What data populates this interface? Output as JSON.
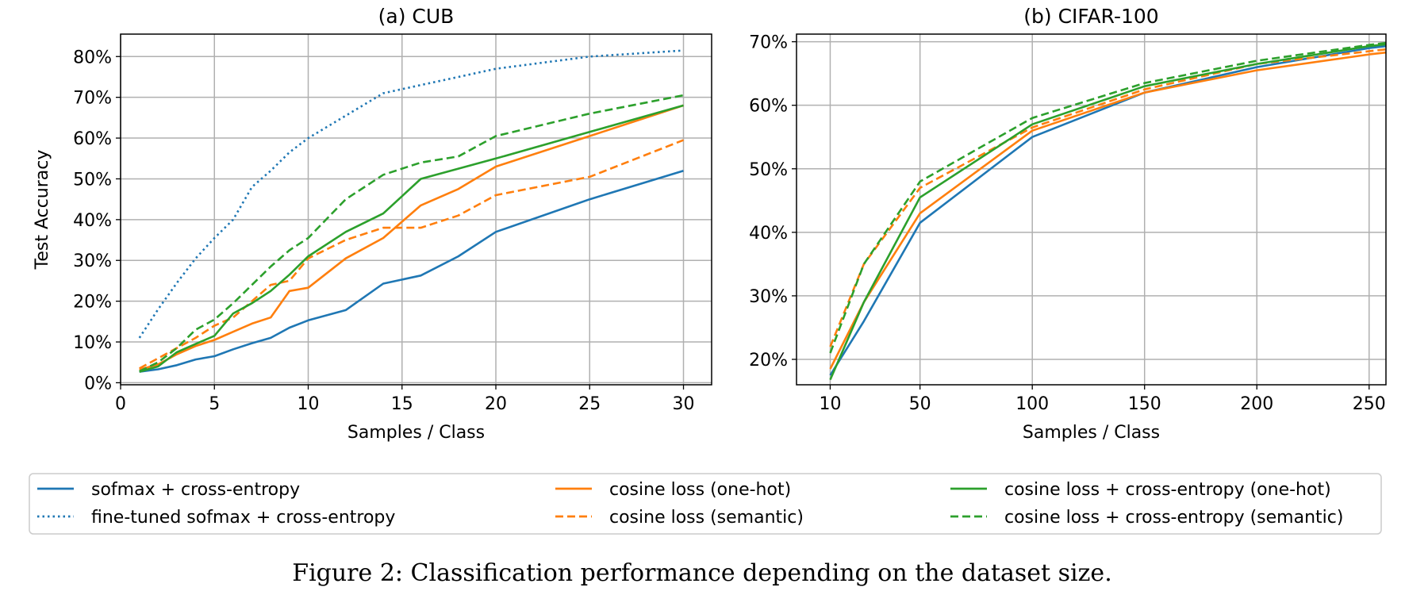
{
  "chart_data": [
    {
      "type": "line",
      "title": "(a) CUB",
      "xlabel": "Samples / Class",
      "ylabel": "Test Accuracy",
      "xlim": [
        0,
        31.5
      ],
      "ylim": [
        -0.5,
        85.5
      ],
      "xticks": [
        0,
        5,
        10,
        15,
        20,
        25,
        30
      ],
      "xtick_labels": [
        "0",
        "5",
        "10",
        "15",
        "20",
        "25",
        "30"
      ],
      "yticks": [
        0,
        10,
        20,
        30,
        40,
        50,
        60,
        70,
        80
      ],
      "ytick_labels": [
        "0%",
        "10%",
        "20%",
        "30%",
        "40%",
        "50%",
        "60%",
        "70%",
        "80%"
      ],
      "grid": true,
      "series": [
        {
          "key": "softmax_ce",
          "x": [
            1,
            2,
            3,
            4,
            5,
            6,
            7,
            8,
            9,
            10,
            12,
            14,
            16,
            18,
            20,
            25,
            30
          ],
          "y": [
            2.7,
            3.3,
            4.3,
            5.7,
            6.5,
            8.2,
            9.7,
            11,
            13.5,
            15.3,
            17.8,
            24.3,
            26.3,
            31,
            37,
            45,
            52
          ]
        },
        {
          "key": "finetuned_softmax_ce",
          "x": [
            1,
            2,
            3,
            4,
            5,
            6,
            7,
            8,
            9,
            10,
            12,
            14,
            16,
            18,
            20,
            25,
            30
          ],
          "y": [
            11,
            18,
            24.5,
            30.5,
            35.5,
            40,
            48,
            52,
            56.5,
            60,
            65.5,
            71,
            73,
            75,
            77,
            80,
            81.5
          ]
        },
        {
          "key": "cosine_onehot",
          "x": [
            1,
            2,
            3,
            4,
            5,
            6,
            7,
            8,
            9,
            10,
            12,
            14,
            16,
            18,
            20,
            25,
            30
          ],
          "y": [
            3.2,
            4.5,
            7,
            9,
            10.5,
            12.5,
            14.5,
            16,
            22.5,
            23.3,
            30.5,
            35.5,
            43.5,
            47.5,
            53,
            60.5,
            68
          ]
        },
        {
          "key": "cosine_semantic",
          "x": [
            1,
            2,
            3,
            4,
            5,
            6,
            7,
            8,
            9,
            10,
            12,
            14,
            16,
            18,
            20,
            25,
            30
          ],
          "y": [
            3.5,
            6,
            8.5,
            11,
            14,
            16,
            20,
            24,
            25,
            30.5,
            35,
            38,
            38,
            41,
            46,
            50.5,
            59.5
          ]
        },
        {
          "key": "cosine_ce_onehot",
          "x": [
            1,
            2,
            3,
            4,
            5,
            6,
            7,
            8,
            9,
            10,
            12,
            14,
            16,
            18,
            20,
            25,
            30
          ],
          "y": [
            2.7,
            4,
            7.5,
            9.5,
            11.5,
            17,
            19.5,
            22.5,
            26.5,
            31,
            37,
            41.5,
            50,
            52.5,
            55,
            61.5,
            68
          ]
        },
        {
          "key": "cosine_ce_semantic",
          "x": [
            1,
            2,
            3,
            4,
            5,
            6,
            7,
            8,
            9,
            10,
            12,
            14,
            16,
            18,
            20,
            25,
            30
          ],
          "y": [
            2.8,
            5,
            8.5,
            13,
            15.5,
            19.5,
            24,
            28.5,
            32.5,
            35.5,
            45,
            51,
            54,
            55.5,
            60.5,
            66,
            70.5
          ]
        }
      ]
    },
    {
      "type": "line",
      "title": "(b) CIFAR-100",
      "xlabel": "Samples / Class",
      "ylabel": "",
      "xlim": [
        -5,
        257.5
      ],
      "ylim": [
        16,
        71.2
      ],
      "xticks": [
        10,
        50,
        100,
        150,
        200,
        250
      ],
      "xtick_labels": [
        "10",
        "50",
        "100",
        "150",
        "200",
        "250"
      ],
      "yticks": [
        20,
        30,
        40,
        50,
        60,
        70
      ],
      "ytick_labels": [
        "20%",
        "30%",
        "40%",
        "50%",
        "60%",
        "70%"
      ],
      "grid": true,
      "series": [
        {
          "key": "softmax_ce",
          "x": [
            10,
            25,
            50,
            100,
            150,
            200,
            250,
            257.5
          ],
          "y": [
            17.5,
            26,
            41.5,
            55,
            62,
            66,
            69,
            69.3
          ]
        },
        {
          "key": "cosine_onehot",
          "x": [
            10,
            25,
            50,
            100,
            150,
            200,
            250,
            257.5
          ],
          "y": [
            18.5,
            29,
            43,
            56,
            62,
            65.5,
            68,
            68.3
          ]
        },
        {
          "key": "cosine_semantic",
          "x": [
            10,
            25,
            50,
            100,
            150,
            200,
            250,
            257.5
          ],
          "y": [
            22,
            35,
            47,
            56.5,
            62.5,
            66.5,
            68.5,
            68.8
          ]
        },
        {
          "key": "cosine_ce_onehot",
          "x": [
            10,
            25,
            50,
            100,
            150,
            200,
            250,
            257.5
          ],
          "y": [
            16.8,
            29,
            45.5,
            57,
            63,
            66.5,
            69.3,
            69.6
          ]
        },
        {
          "key": "cosine_ce_semantic",
          "x": [
            10,
            25,
            50,
            100,
            150,
            200,
            250,
            257.5
          ],
          "y": [
            21,
            35,
            48,
            58,
            63.5,
            67,
            69.5,
            69.8
          ]
        }
      ]
    }
  ],
  "legend": {
    "items": [
      {
        "key": "softmax_ce",
        "label": "sofmax + cross-entropy",
        "color": "#1f77b4",
        "style": "solid"
      },
      {
        "key": "finetuned_softmax_ce",
        "label": "fine-tuned sofmax + cross-entropy",
        "color": "#1f77b4",
        "style": "dotted"
      },
      {
        "key": "cosine_onehot",
        "label": "cosine loss (one-hot)",
        "color": "#ff7f0e",
        "style": "solid"
      },
      {
        "key": "cosine_semantic",
        "label": "cosine loss (semantic)",
        "color": "#ff7f0e",
        "style": "dashed"
      },
      {
        "key": "cosine_ce_onehot",
        "label": "cosine loss + cross-entropy (one-hot)",
        "color": "#2ca02c",
        "style": "solid"
      },
      {
        "key": "cosine_ce_semantic",
        "label": "cosine loss + cross-entropy (semantic)",
        "color": "#2ca02c",
        "style": "dashed"
      }
    ]
  },
  "caption": "Figure 2: Classification performance depending on the dataset size."
}
